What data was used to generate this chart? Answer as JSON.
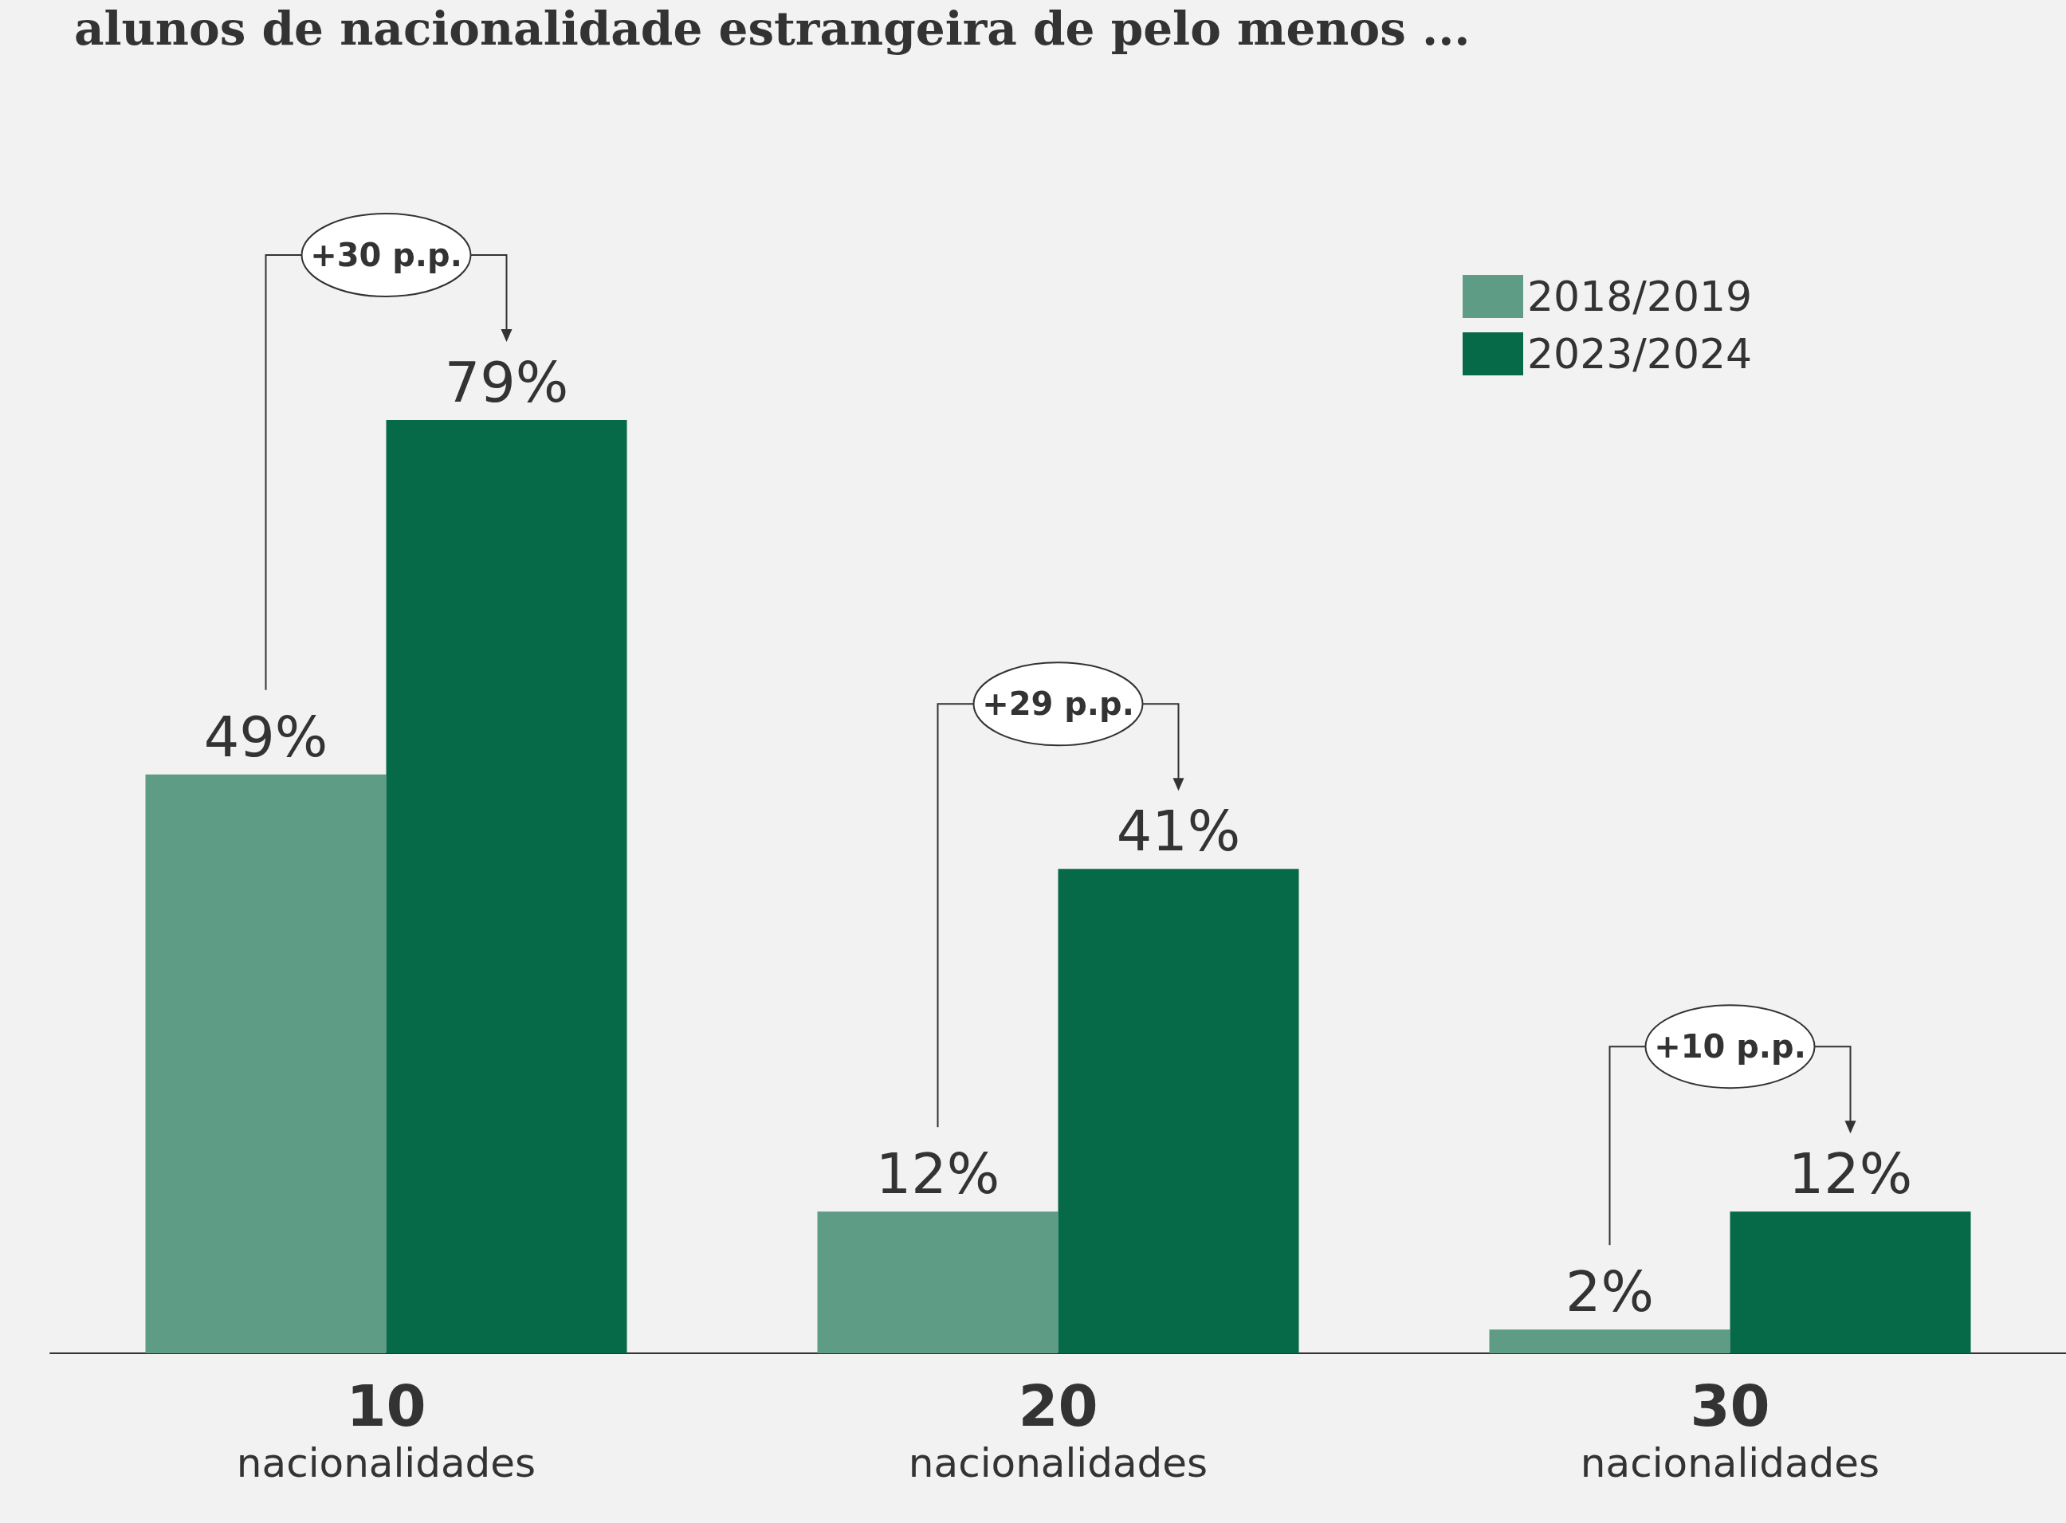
{
  "chart_data": {
    "type": "bar",
    "title": "alunos de nacionalidade estrangeira de pelo menos ...",
    "categories": [
      "10\nnacionalidades",
      "20\nnacionalidades",
      "30\nnacionalidades"
    ],
    "series": [
      {
        "name": "2018/2019",
        "color": "#5e9c86",
        "values": [
          49,
          12,
          2
        ],
        "value_labels": [
          "49%",
          "12%",
          "2%"
        ]
      },
      {
        "name": "2023/2024",
        "color": "#066948",
        "values": [
          79,
          41,
          12
        ],
        "value_labels": [
          "79%",
          "41%",
          "12%"
        ]
      }
    ],
    "annotations": [
      "+30 p.p.",
      "+29 p.p.",
      "+10 p.p."
    ],
    "legend": "top right",
    "grid": false
  }
}
